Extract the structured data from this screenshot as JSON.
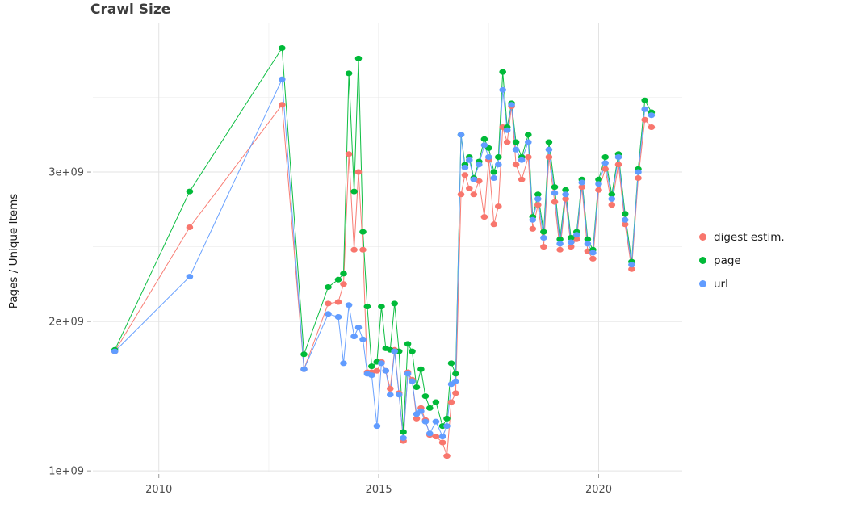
{
  "title": "Crawl Size",
  "chart_data": {
    "type": "scatter",
    "title": "Crawl Size",
    "xlabel": "",
    "ylabel": "Pages / Unique Items",
    "grid": true,
    "legend_position": "right",
    "y_unit_multiplier": 1000000000,
    "xlim": [
      2008.5,
      2021.9
    ],
    "ylim": [
      0.99,
      4.0
    ],
    "x_ticks": [
      2010,
      2015,
      2020
    ],
    "x_tick_labels": [
      "2010",
      "2015",
      "2020"
    ],
    "x_minor_ticks": [
      2012.5,
      2017.5
    ],
    "y_ticks": [
      1,
      2,
      3
    ],
    "y_tick_labels": [
      "1e+09",
      "2e+09",
      "3e+09"
    ],
    "y_minor_ticks": [
      1.5,
      2.5,
      3.5
    ],
    "x": [
      2009.0,
      2010.7,
      2012.8,
      2013.3,
      2013.85,
      2014.08,
      2014.2,
      2014.32,
      2014.44,
      2014.54,
      2014.64,
      2014.74,
      2014.84,
      2014.96,
      2015.06,
      2015.16,
      2015.26,
      2015.36,
      2015.46,
      2015.56,
      2015.66,
      2015.76,
      2015.86,
      2015.96,
      2016.06,
      2016.16,
      2016.3,
      2016.45,
      2016.55,
      2016.65,
      2016.75,
      2016.87,
      2016.96,
      2017.06,
      2017.16,
      2017.28,
      2017.4,
      2017.5,
      2017.62,
      2017.72,
      2017.82,
      2017.92,
      2018.02,
      2018.12,
      2018.25,
      2018.4,
      2018.5,
      2018.62,
      2018.75,
      2018.87,
      2019.0,
      2019.12,
      2019.25,
      2019.37,
      2019.5,
      2019.62,
      2019.75,
      2019.87,
      2020.0,
      2020.15,
      2020.3,
      2020.45,
      2020.6,
      2020.75,
      2020.9,
      2021.05,
      2021.2
    ],
    "series": [
      {
        "name": "digest estim.",
        "color": "#F8766D",
        "values": [
          1.8,
          2.63,
          3.45,
          1.68,
          2.12,
          2.13,
          2.25,
          3.12,
          2.48,
          3.0,
          2.48,
          1.66,
          1.66,
          1.67,
          1.73,
          1.67,
          1.55,
          1.81,
          1.52,
          1.2,
          1.66,
          1.61,
          1.35,
          1.42,
          1.34,
          1.24,
          1.23,
          1.19,
          1.1,
          1.46,
          1.52,
          2.85,
          2.98,
          2.89,
          2.85,
          2.94,
          2.7,
          3.08,
          2.65,
          2.77,
          3.3,
          3.2,
          3.44,
          3.05,
          2.95,
          3.1,
          2.62,
          2.78,
          2.5,
          3.1,
          2.8,
          2.48,
          2.82,
          2.5,
          2.55,
          2.9,
          2.47,
          2.42,
          2.88,
          3.02,
          2.78,
          3.05,
          2.65,
          2.35,
          2.96,
          3.35,
          3.3
        ]
      },
      {
        "name": "page",
        "color": "#00BA38",
        "values": [
          1.81,
          2.87,
          3.83,
          1.78,
          2.23,
          2.28,
          2.32,
          3.66,
          2.87,
          3.76,
          2.6,
          2.1,
          1.7,
          1.73,
          2.1,
          1.82,
          1.81,
          2.12,
          1.8,
          1.26,
          1.85,
          1.8,
          1.56,
          1.68,
          1.5,
          1.42,
          1.46,
          1.3,
          1.35,
          1.72,
          1.65,
          3.25,
          3.05,
          3.1,
          2.96,
          3.07,
          3.22,
          3.16,
          3.0,
          3.1,
          3.67,
          3.3,
          3.46,
          3.2,
          3.1,
          3.25,
          2.7,
          2.85,
          2.6,
          3.2,
          2.9,
          2.55,
          2.88,
          2.56,
          2.6,
          2.95,
          2.55,
          2.48,
          2.95,
          3.1,
          2.85,
          3.12,
          2.72,
          2.4,
          3.02,
          3.48,
          3.4
        ]
      },
      {
        "name": "url",
        "color": "#619CFF",
        "values": [
          1.8,
          2.3,
          3.62,
          1.68,
          2.05,
          2.03,
          1.72,
          2.11,
          1.9,
          1.96,
          1.88,
          1.65,
          1.64,
          1.3,
          1.72,
          1.67,
          1.51,
          1.8,
          1.51,
          1.22,
          1.65,
          1.6,
          1.38,
          1.4,
          1.33,
          1.25,
          1.33,
          1.23,
          1.3,
          1.58,
          1.6,
          3.25,
          3.03,
          3.08,
          2.95,
          3.05,
          3.18,
          3.1,
          2.96,
          3.05,
          3.55,
          3.28,
          3.45,
          3.15,
          3.08,
          3.2,
          2.68,
          2.82,
          2.56,
          3.15,
          2.86,
          2.52,
          2.85,
          2.53,
          2.58,
          2.93,
          2.52,
          2.46,
          2.92,
          3.06,
          2.82,
          3.1,
          2.68,
          2.38,
          3.0,
          3.42,
          3.38
        ]
      }
    ]
  }
}
